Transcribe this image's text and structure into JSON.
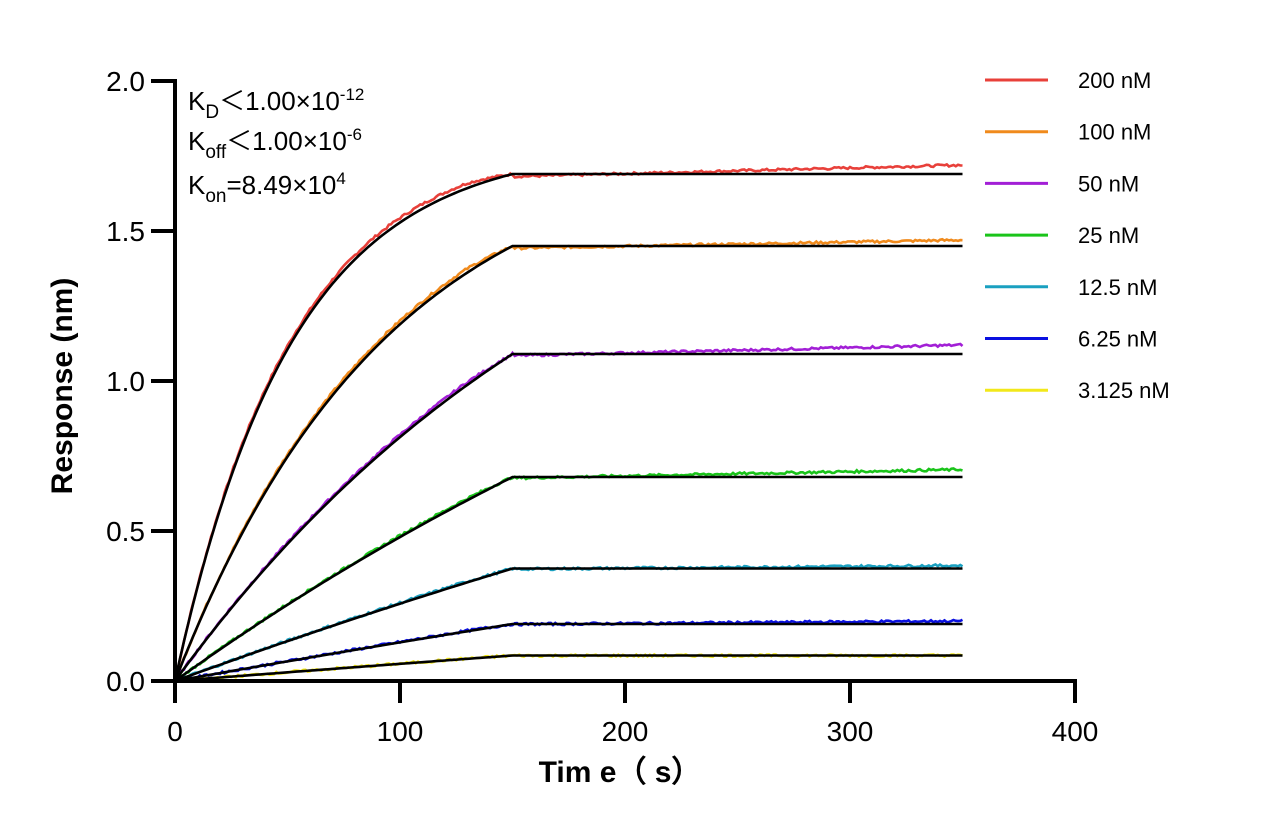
{
  "chart_data": {
    "type": "line",
    "title": "",
    "xlabel": "Tim e（ s）",
    "ylabel": "Response (nm)",
    "xlim": [
      0,
      400
    ],
    "ylim": [
      0,
      2.0
    ],
    "x_ticks": [
      "0",
      "100",
      "200",
      "300",
      "400"
    ],
    "y_ticks": [
      "0.0",
      "0.5",
      "1.0",
      "1.5",
      "2.0"
    ],
    "grid": false,
    "legend_position": "top-right",
    "association_end_s": 150,
    "end_time_s": 350,
    "annotations": {
      "kd": {
        "main": "K",
        "sub": "D",
        "rest": "＜1.00×10",
        "sup": "-12"
      },
      "koff": {
        "main": "K",
        "sub": "off",
        "rest": "＜1.00×10",
        "sup": "-6"
      },
      "kon": {
        "main": "K",
        "sub": "on",
        "rest": "=8.49×10",
        "sup": "4"
      }
    },
    "series": [
      {
        "name": "200 nM",
        "color": "#e8403a",
        "plateau": 1.69,
        "tau": 52,
        "end_value": 1.72
      },
      {
        "name": "100 nM",
        "color": "#f08a1c",
        "plateau": 1.45,
        "tau": 95,
        "end_value": 1.47
      },
      {
        "name": "50 nM",
        "color": "#a21fd6",
        "plateau": 1.09,
        "tau": 200,
        "end_value": 1.12
      },
      {
        "name": "25 nM",
        "color": "#1ac41a",
        "plateau": 0.68,
        "tau": 420,
        "end_value": 0.705
      },
      {
        "name": "12.5 nM",
        "color": "#1aa0c0",
        "plateau": 0.375,
        "tau": 800,
        "end_value": 0.385
      },
      {
        "name": "6.25 nM",
        "color": "#0a10e0",
        "plateau": 0.19,
        "tau": 1500,
        "end_value": 0.2
      },
      {
        "name": "3.125 nM",
        "color": "#f2e81a",
        "plateau": 0.085,
        "tau": 2500,
        "end_value": 0.085
      }
    ],
    "fit_color": "#000000"
  }
}
